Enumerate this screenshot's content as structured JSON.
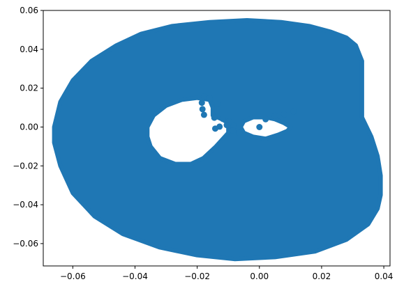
{
  "chart_data": {
    "type": "scatter",
    "title": "",
    "xlabel": "",
    "ylabel": "",
    "xlim": [
      -0.0695,
      0.042
    ],
    "ylim": [
      -0.0715,
      0.06
    ],
    "grid": false,
    "x_ticks": [
      -0.06,
      -0.04,
      -0.02,
      0.0,
      0.02,
      0.04
    ],
    "x_tick_labels": [
      "−0.06",
      "−0.04",
      "−0.02",
      "0.00",
      "0.02",
      "0.04"
    ],
    "y_ticks": [
      -0.06,
      -0.04,
      -0.02,
      0.0,
      0.02,
      0.04,
      0.06
    ],
    "y_tick_labels": [
      "−0.06",
      "−0.04",
      "−0.02",
      "0.00",
      "0.02",
      "0.04",
      "0.06"
    ],
    "series": [
      {
        "color": "#1f77b4",
        "outer_boundary": [
          [
            -0.066,
            0.0
          ],
          [
            -0.064,
            0.013
          ],
          [
            -0.06,
            0.024
          ],
          [
            -0.054,
            0.034
          ],
          [
            -0.046,
            0.042
          ],
          [
            -0.038,
            0.048
          ],
          [
            -0.028,
            0.052
          ],
          [
            -0.016,
            0.054
          ],
          [
            -0.004,
            0.055
          ],
          [
            0.007,
            0.054
          ],
          [
            0.016,
            0.052
          ],
          [
            0.023,
            0.049
          ],
          [
            0.028,
            0.046
          ],
          [
            0.031,
            0.042
          ],
          [
            0.033,
            0.034
          ],
          [
            0.033,
            0.025
          ],
          [
            0.033,
            0.018
          ],
          [
            0.033,
            0.005
          ],
          [
            0.036,
            -0.005
          ],
          [
            0.038,
            -0.015
          ],
          [
            0.039,
            -0.025
          ],
          [
            0.039,
            -0.035
          ],
          [
            0.038,
            -0.042
          ],
          [
            0.035,
            -0.05
          ],
          [
            0.028,
            -0.058
          ],
          [
            0.018,
            -0.064
          ],
          [
            0.005,
            -0.067
          ],
          [
            -0.008,
            -0.068
          ],
          [
            -0.02,
            -0.066
          ],
          [
            -0.032,
            -0.062
          ],
          [
            -0.044,
            -0.055
          ],
          [
            -0.053,
            -0.046
          ],
          [
            -0.06,
            -0.034
          ],
          [
            -0.064,
            -0.02
          ],
          [
            -0.066,
            -0.008
          ]
        ],
        "large_hole": [
          [
            -0.036,
            0.0
          ],
          [
            -0.034,
            0.006
          ],
          [
            -0.03,
            0.011
          ],
          [
            -0.025,
            0.014
          ],
          [
            -0.02,
            0.015
          ],
          [
            -0.016,
            0.014
          ],
          [
            -0.015,
            0.01
          ],
          [
            -0.015,
            0.006
          ],
          [
            -0.012,
            0.004
          ],
          [
            -0.01,
            0.002
          ],
          [
            -0.01,
            -0.003
          ],
          [
            -0.014,
            -0.01
          ],
          [
            -0.018,
            -0.016
          ],
          [
            -0.022,
            -0.019
          ],
          [
            -0.027,
            -0.019
          ],
          [
            -0.032,
            -0.016
          ],
          [
            -0.035,
            -0.01
          ],
          [
            -0.036,
            -0.005
          ]
        ],
        "small_hole": [
          [
            -0.006,
            0.0
          ],
          [
            -0.005,
            0.003
          ],
          [
            -0.002,
            0.005
          ],
          [
            0.002,
            0.005
          ],
          [
            0.005,
            0.004
          ],
          [
            0.008,
            0.002
          ],
          [
            0.01,
            0.0
          ],
          [
            0.009,
            -0.002
          ],
          [
            0.006,
            -0.004
          ],
          [
            0.002,
            -0.006
          ],
          [
            -0.002,
            -0.005
          ],
          [
            -0.005,
            -0.003
          ]
        ],
        "points": [
          [
            -0.0178,
            0.0158
          ],
          [
            -0.0185,
            0.0125
          ],
          [
            -0.0183,
            0.0092
          ],
          [
            -0.0178,
            0.0063
          ],
          [
            -0.0145,
            0.0048
          ],
          [
            -0.0118,
            0.0042
          ],
          [
            -0.0098,
            0.0028
          ],
          [
            -0.0105,
            0.001
          ],
          [
            -0.0082,
            0.0005
          ],
          [
            -0.0128,
            0.0002
          ],
          [
            -0.0142,
            -0.0008
          ],
          [
            -0.0085,
            -0.0018
          ],
          [
            -0.0065,
            -0.003
          ],
          [
            -0.016,
            0.0148
          ],
          [
            -0.0135,
            0.0118
          ],
          [
            0.0,
            0.0
          ],
          [
            0.005,
            0.0058
          ],
          [
            0.008,
            0.0065
          ],
          [
            0.011,
            0.008
          ],
          [
            0.002,
            0.004
          ]
        ]
      }
    ]
  }
}
